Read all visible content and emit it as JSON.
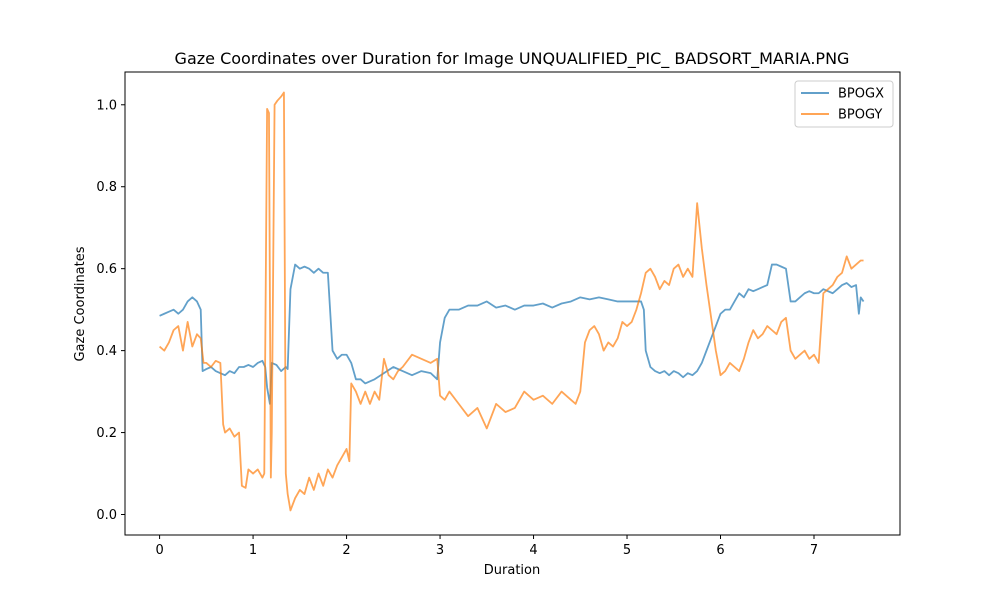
{
  "chart_data": {
    "type": "line",
    "title": "Gaze Coordinates over Duration for Image UNQUALIFIED_PIC_ BADSORT_MARIA.PNG",
    "xlabel": "Duration",
    "ylabel": "Gaze Coordinates",
    "xlim": [
      -0.37,
      7.92
    ],
    "ylim": [
      -0.05,
      1.08
    ],
    "xticks": [
      0,
      1,
      2,
      3,
      4,
      5,
      6,
      7
    ],
    "yticks": [
      0.0,
      0.2,
      0.4,
      0.6,
      0.8,
      1.0
    ],
    "xtick_labels": [
      "0",
      "1",
      "2",
      "3",
      "4",
      "5",
      "6",
      "7"
    ],
    "ytick_labels": [
      "0.0",
      "0.2",
      "0.4",
      "0.6",
      "0.8",
      "1.0"
    ],
    "grid": false,
    "legend_position": "top-right",
    "series": [
      {
        "name": "BPOGX",
        "color": "#1f77b4",
        "x": [
          0.0,
          0.05,
          0.1,
          0.15,
          0.2,
          0.25,
          0.3,
          0.35,
          0.4,
          0.44,
          0.46,
          0.5,
          0.55,
          0.6,
          0.65,
          0.7,
          0.75,
          0.8,
          0.85,
          0.9,
          0.95,
          1.0,
          1.05,
          1.1,
          1.13,
          1.15,
          1.18,
          1.2,
          1.25,
          1.3,
          1.35,
          1.37,
          1.4,
          1.45,
          1.5,
          1.55,
          1.6,
          1.65,
          1.7,
          1.75,
          1.8,
          1.85,
          1.9,
          1.95,
          2.0,
          2.05,
          2.1,
          2.15,
          2.2,
          2.3,
          2.4,
          2.5,
          2.6,
          2.7,
          2.8,
          2.9,
          2.97,
          3.0,
          3.05,
          3.1,
          3.2,
          3.3,
          3.4,
          3.5,
          3.6,
          3.7,
          3.8,
          3.9,
          4.0,
          4.1,
          4.2,
          4.3,
          4.4,
          4.5,
          4.6,
          4.7,
          4.8,
          4.9,
          5.0,
          5.1,
          5.15,
          5.18,
          5.2,
          5.25,
          5.3,
          5.35,
          5.4,
          5.45,
          5.5,
          5.55,
          5.6,
          5.65,
          5.7,
          5.75,
          5.8,
          5.85,
          5.9,
          5.95,
          6.0,
          6.05,
          6.1,
          6.15,
          6.2,
          6.25,
          6.3,
          6.35,
          6.4,
          6.45,
          6.5,
          6.55,
          6.6,
          6.65,
          6.7,
          6.75,
          6.8,
          6.85,
          6.9,
          6.95,
          7.0,
          7.05,
          7.1,
          7.15,
          7.2,
          7.25,
          7.3,
          7.35,
          7.4,
          7.45,
          7.48,
          7.5,
          7.53
        ],
        "y": [
          0.485,
          0.49,
          0.495,
          0.5,
          0.49,
          0.5,
          0.52,
          0.53,
          0.52,
          0.5,
          0.35,
          0.355,
          0.36,
          0.35,
          0.345,
          0.34,
          0.35,
          0.345,
          0.36,
          0.36,
          0.365,
          0.36,
          0.37,
          0.375,
          0.36,
          0.31,
          0.27,
          0.37,
          0.365,
          0.35,
          0.36,
          0.355,
          0.55,
          0.61,
          0.6,
          0.605,
          0.6,
          0.59,
          0.6,
          0.59,
          0.59,
          0.4,
          0.38,
          0.39,
          0.39,
          0.37,
          0.33,
          0.33,
          0.32,
          0.33,
          0.345,
          0.36,
          0.35,
          0.34,
          0.35,
          0.345,
          0.33,
          0.42,
          0.48,
          0.5,
          0.5,
          0.51,
          0.51,
          0.52,
          0.505,
          0.51,
          0.5,
          0.51,
          0.51,
          0.515,
          0.505,
          0.515,
          0.52,
          0.53,
          0.525,
          0.53,
          0.525,
          0.52,
          0.52,
          0.52,
          0.52,
          0.5,
          0.4,
          0.36,
          0.35,
          0.345,
          0.35,
          0.34,
          0.35,
          0.345,
          0.335,
          0.345,
          0.34,
          0.35,
          0.37,
          0.4,
          0.43,
          0.46,
          0.49,
          0.5,
          0.5,
          0.52,
          0.54,
          0.53,
          0.55,
          0.545,
          0.55,
          0.555,
          0.56,
          0.61,
          0.61,
          0.605,
          0.6,
          0.52,
          0.52,
          0.53,
          0.54,
          0.545,
          0.54,
          0.54,
          0.55,
          0.545,
          0.54,
          0.55,
          0.56,
          0.565,
          0.555,
          0.56,
          0.49,
          0.53,
          0.52
        ]
      },
      {
        "name": "BPOGY",
        "color": "#ff7f0e",
        "x": [
          0.0,
          0.05,
          0.1,
          0.15,
          0.2,
          0.25,
          0.3,
          0.35,
          0.4,
          0.44,
          0.47,
          0.5,
          0.55,
          0.6,
          0.65,
          0.68,
          0.7,
          0.75,
          0.8,
          0.85,
          0.88,
          0.92,
          0.95,
          1.0,
          1.05,
          1.1,
          1.12,
          1.15,
          1.17,
          1.19,
          1.2,
          1.23,
          1.26,
          1.3,
          1.33,
          1.35,
          1.37,
          1.4,
          1.45,
          1.5,
          1.55,
          1.6,
          1.65,
          1.7,
          1.75,
          1.8,
          1.85,
          1.9,
          1.95,
          2.0,
          2.03,
          2.05,
          2.1,
          2.15,
          2.2,
          2.25,
          2.3,
          2.35,
          2.4,
          2.45,
          2.5,
          2.55,
          2.6,
          2.7,
          2.8,
          2.9,
          2.97,
          3.0,
          3.05,
          3.1,
          3.2,
          3.3,
          3.4,
          3.5,
          3.6,
          3.7,
          3.8,
          3.9,
          4.0,
          4.1,
          4.2,
          4.3,
          4.4,
          4.45,
          4.5,
          4.55,
          4.6,
          4.65,
          4.7,
          4.75,
          4.8,
          4.85,
          4.9,
          4.95,
          5.0,
          5.05,
          5.1,
          5.15,
          5.2,
          5.25,
          5.3,
          5.35,
          5.4,
          5.45,
          5.5,
          5.55,
          5.6,
          5.65,
          5.7,
          5.75,
          5.8,
          5.85,
          5.9,
          5.95,
          6.0,
          6.05,
          6.1,
          6.15,
          6.2,
          6.25,
          6.3,
          6.35,
          6.4,
          6.45,
          6.5,
          6.55,
          6.6,
          6.65,
          6.7,
          6.75,
          6.8,
          6.85,
          6.9,
          6.95,
          7.0,
          7.05,
          7.1,
          7.15,
          7.2,
          7.25,
          7.3,
          7.35,
          7.4,
          7.45,
          7.5,
          7.53
        ],
        "y": [
          0.41,
          0.4,
          0.42,
          0.45,
          0.46,
          0.4,
          0.47,
          0.41,
          0.44,
          0.43,
          0.37,
          0.37,
          0.36,
          0.375,
          0.37,
          0.22,
          0.2,
          0.21,
          0.19,
          0.2,
          0.07,
          0.065,
          0.11,
          0.1,
          0.11,
          0.09,
          0.1,
          0.99,
          0.98,
          0.09,
          0.2,
          1.0,
          1.01,
          1.02,
          1.03,
          0.1,
          0.05,
          0.01,
          0.04,
          0.06,
          0.05,
          0.09,
          0.06,
          0.1,
          0.07,
          0.11,
          0.09,
          0.12,
          0.14,
          0.16,
          0.13,
          0.32,
          0.3,
          0.27,
          0.3,
          0.27,
          0.3,
          0.28,
          0.38,
          0.34,
          0.33,
          0.35,
          0.36,
          0.39,
          0.38,
          0.37,
          0.38,
          0.29,
          0.28,
          0.3,
          0.27,
          0.24,
          0.26,
          0.21,
          0.27,
          0.25,
          0.26,
          0.3,
          0.28,
          0.29,
          0.27,
          0.3,
          0.28,
          0.27,
          0.3,
          0.42,
          0.45,
          0.46,
          0.44,
          0.4,
          0.42,
          0.41,
          0.43,
          0.47,
          0.46,
          0.47,
          0.5,
          0.54,
          0.59,
          0.6,
          0.58,
          0.55,
          0.57,
          0.56,
          0.6,
          0.61,
          0.58,
          0.6,
          0.58,
          0.76,
          0.65,
          0.56,
          0.48,
          0.4,
          0.34,
          0.35,
          0.37,
          0.36,
          0.35,
          0.38,
          0.42,
          0.45,
          0.43,
          0.44,
          0.46,
          0.45,
          0.44,
          0.47,
          0.48,
          0.4,
          0.38,
          0.39,
          0.4,
          0.38,
          0.39,
          0.37,
          0.54,
          0.55,
          0.56,
          0.58,
          0.59,
          0.63,
          0.6,
          0.61,
          0.62,
          0.62
        ]
      }
    ]
  }
}
